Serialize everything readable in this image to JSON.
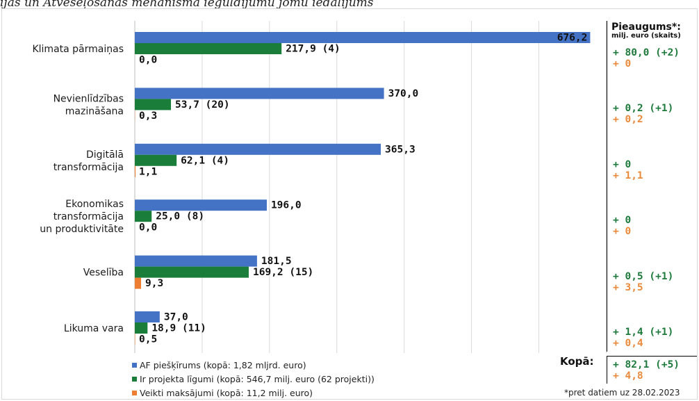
{
  "top_caption": "ijas un Atveseļošanās mehānisma ieguldījumu jomu iedalījums",
  "colors": {
    "allocation": "#4472c4",
    "contracts": "#1a7e3a",
    "payments": "#ed7d31",
    "increase_green": "#1e7a3c",
    "increase_orange": "#ea8a3a"
  },
  "chart_data": {
    "type": "bar",
    "orientation": "horizontal",
    "grid": true,
    "xlim": [
      0,
      700
    ],
    "categories": [
      "Klimata pārmaiņas",
      "Nevienlīdzības mazināšana",
      "Digitālā transformācija",
      "Ekonomikas transformācija un produktivitāte",
      "Veselība",
      "Likuma vara"
    ],
    "category_lines": [
      [
        "Klimata pārmaiņas"
      ],
      [
        "Nevienlīdzības",
        "mazināšana"
      ],
      [
        "Digitālā",
        "transformācija"
      ],
      [
        "Ekonomikas",
        "transformācija",
        "un produktivitāte"
      ],
      [
        "Veselība"
      ],
      [
        "Likuma vara"
      ]
    ],
    "series": [
      {
        "name": "AF piešķīrums (kopā: 1,82 mljrd. euro)",
        "values": [
          676.2,
          370.0,
          365.3,
          196.0,
          181.5,
          37.0
        ],
        "labels": [
          "676,2",
          "370,0",
          "365,3",
          "196,0",
          "181,5",
          "37,0"
        ]
      },
      {
        "name": "Ir projekta līgumi (kopā: 546,7 milj. euro (62 projekti))",
        "values": [
          217.9,
          53.7,
          62.1,
          25.0,
          169.2,
          18.9
        ],
        "labels": [
          "217,9 (4)",
          "53,7 (20)",
          "62,1 (4)",
          "25,0 (8)",
          "169,2 (15)",
          "18,9 (11)"
        ]
      },
      {
        "name": "Veikti maksājumi (kopā: 11,2 milj. euro)",
        "values": [
          0.0,
          0.3,
          1.1,
          0.0,
          9.3,
          0.5
        ],
        "labels": [
          "0,0",
          "0,3",
          "1,1",
          "0,0",
          "9,3",
          "0,5"
        ]
      }
    ]
  },
  "increase_panel": {
    "title": "Pieaugums*:",
    "subtitle": "milj. euro (skaits)",
    "rows": [
      {
        "green": "+ 80,0 (+2)",
        "orange": "+ 0"
      },
      {
        "green": "+ 0,2 (+1)",
        "orange": "+ 0,2"
      },
      {
        "green": "+ 0",
        "orange": "+ 1,1"
      },
      {
        "green": "+ 0",
        "orange": "+ 0"
      },
      {
        "green": "+ 0,5 (+1)",
        "orange": "+ 3,5"
      },
      {
        "green": "+ 1,4 (+1)",
        "orange": "+ 0,4"
      }
    ],
    "total_label": "Kopā:",
    "total_green": "+ 82,1 (+5)",
    "total_orange": "+ 4,8"
  },
  "legend": {
    "items": [
      "AF piešķīrums (kopā: 1,82 mljrd. euro)",
      "Ir projekta līgumi (kopā: 546,7 milj. euro (62 projekti))",
      "Veikti maksājumi (kopā: 11,2 milj. euro)"
    ]
  },
  "footnote": "*pret datiem uz 28.02.2023"
}
